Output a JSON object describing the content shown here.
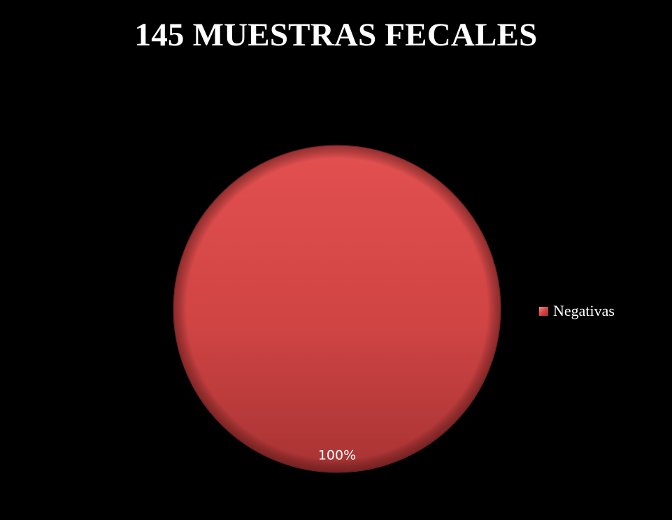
{
  "chart_data": {
    "type": "pie",
    "title": "145 MUESTRAS FECALES",
    "categories": [
      "Negativas"
    ],
    "values": [
      100
    ],
    "data_labels": [
      "100%"
    ],
    "colors": [
      "#d84545"
    ],
    "legend_position": "right"
  }
}
